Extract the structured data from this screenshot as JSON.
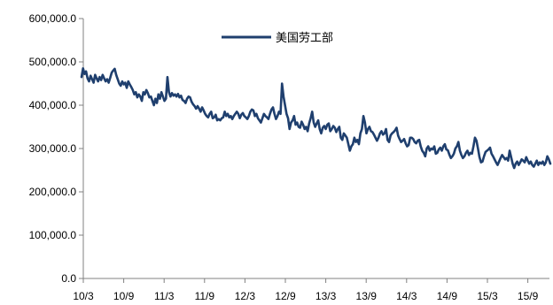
{
  "chart_data": {
    "type": "line",
    "title": "",
    "xlabel": "",
    "ylabel": "",
    "ylim": [
      0,
      600000
    ],
    "y_ticks": [
      0,
      100000,
      200000,
      300000,
      400000,
      500000,
      600000
    ],
    "y_tick_labels": [
      "0.0",
      "100,000.0",
      "200,000.0",
      "300,000.0",
      "400,000.0",
      "500,000.0",
      "600,000.0"
    ],
    "x_tick_labels": [
      "10/3",
      "10/9",
      "11/3",
      "11/9",
      "12/3",
      "12/9",
      "13/3",
      "13/9",
      "14/3",
      "14/9",
      "15/3",
      "15/9"
    ],
    "grid": false,
    "legend_position": "top-center",
    "series_color": "#1f3f6e",
    "series": [
      {
        "name": "美国劳工部",
        "x_start": "2010-03",
        "frequency": "weekly",
        "values": [
          465000,
          485000,
          472000,
          478000,
          462000,
          455000,
          468000,
          460000,
          452000,
          470000,
          462000,
          455000,
          465000,
          458000,
          470000,
          462000,
          455000,
          460000,
          452000,
          463000,
          475000,
          480000,
          484000,
          470000,
          460000,
          450000,
          445000,
          455000,
          448000,
          452000,
          440000,
          455000,
          448000,
          442000,
          435000,
          425000,
          430000,
          418000,
          425000,
          420000,
          410000,
          430000,
          425000,
          435000,
          428000,
          418000,
          420000,
          410000,
          400000,
          415000,
          405000,
          425000,
          415000,
          430000,
          420000,
          410000,
          415000,
          465000,
          430000,
          420000,
          428000,
          422000,
          425000,
          420000,
          426000,
          418000,
          422000,
          412000,
          410000,
          405000,
          415000,
          420000,
          418000,
          408000,
          402000,
          398000,
          392000,
          398000,
          392000,
          385000,
          395000,
          388000,
          380000,
          375000,
          372000,
          380000,
          385000,
          370000,
          372000,
          378000,
          365000,
          368000,
          365000,
          370000,
          372000,
          385000,
          375000,
          380000,
          372000,
          375000,
          368000,
          375000,
          380000,
          385000,
          380000,
          370000,
          378000,
          382000,
          375000,
          372000,
          368000,
          375000,
          385000,
          390000,
          388000,
          375000,
          380000,
          370000,
          365000,
          360000,
          370000,
          380000,
          375000,
          372000,
          368000,
          380000,
          390000,
          395000,
          380000,
          368000,
          375000,
          385000,
          380000,
          450000,
          420000,
          400000,
          380000,
          370000,
          345000,
          360000,
          365000,
          375000,
          355000,
          360000,
          350000,
          348000,
          362000,
          355000,
          345000,
          350000,
          340000,
          358000,
          370000,
          385000,
          360000,
          350000,
          358000,
          365000,
          345000,
          335000,
          348000,
          352000,
          345000,
          355000,
          358000,
          340000,
          345000,
          352000,
          348000,
          338000,
          345000,
          350000,
          325000,
          320000,
          335000,
          330000,
          325000,
          310000,
          295000,
          305000,
          310000,
          325000,
          315000,
          320000,
          310000,
          335000,
          345000,
          375000,
          360000,
          335000,
          345000,
          350000,
          340000,
          338000,
          332000,
          325000,
          318000,
          325000,
          335000,
          340000,
          332000,
          335000,
          345000,
          320000,
          315000,
          330000,
          335000,
          338000,
          342000,
          348000,
          330000,
          322000,
          315000,
          318000,
          322000,
          312000,
          305000,
          308000,
          325000,
          325000,
          322000,
          315000,
          312000,
          318000,
          320000,
          305000,
          295000,
          290000,
          282000,
          300000,
          305000,
          295000,
          300000,
          298000,
          305000,
          288000,
          290000,
          298000,
          302000,
          295000,
          305000,
          310000,
          298000,
          296000,
          286000,
          278000,
          282000,
          288000,
          300000,
          305000,
          315000,
          295000,
          285000,
          278000,
          282000,
          290000,
          295000,
          285000,
          290000,
          288000,
          305000,
          325000,
          318000,
          300000,
          280000,
          268000,
          270000,
          282000,
          292000,
          295000,
          298000,
          302000,
          288000,
          282000,
          275000,
          268000,
          262000,
          270000,
          278000,
          285000,
          280000,
          275000,
          278000,
          272000,
          295000,
          280000,
          265000,
          255000,
          265000,
          270000,
          262000,
          268000,
          275000,
          272000,
          268000,
          280000,
          272000,
          265000,
          270000,
          262000,
          258000,
          265000,
          272000,
          262000,
          268000,
          265000,
          270000,
          262000,
          268000,
          282000,
          275000,
          265000
        ]
      }
    ]
  }
}
